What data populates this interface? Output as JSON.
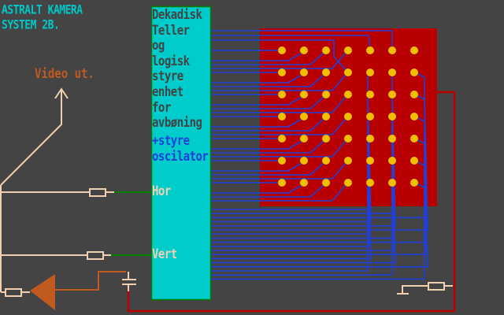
{
  "title": {
    "line1": "ASTRALT KAMERA",
    "line2": "SYSTEM 2B."
  },
  "video_label": "Video ut.",
  "unit_labels": [
    "Dekadisk",
    "Teller",
    "og",
    "logisk",
    "styre",
    "enhet",
    "for",
    "avbøning"
  ],
  "osc_labels": [
    "+styre",
    "oscilator"
  ],
  "hor_label": "Hor",
  "vert_label": "Vert",
  "led_grid": {
    "rows": 7,
    "cols": 7
  },
  "colors": {
    "background": "#444444",
    "title": "#00c8c8",
    "unit_box": "#00cccc",
    "unit_border": "#008000",
    "dark_text": "#444444",
    "blue": "#2040d8",
    "panel": "#b80000",
    "led": "#f0c000",
    "beige": "#f0d0b0",
    "orange": "#c05a20",
    "green": "#008000",
    "red_wire": "#c00000"
  }
}
